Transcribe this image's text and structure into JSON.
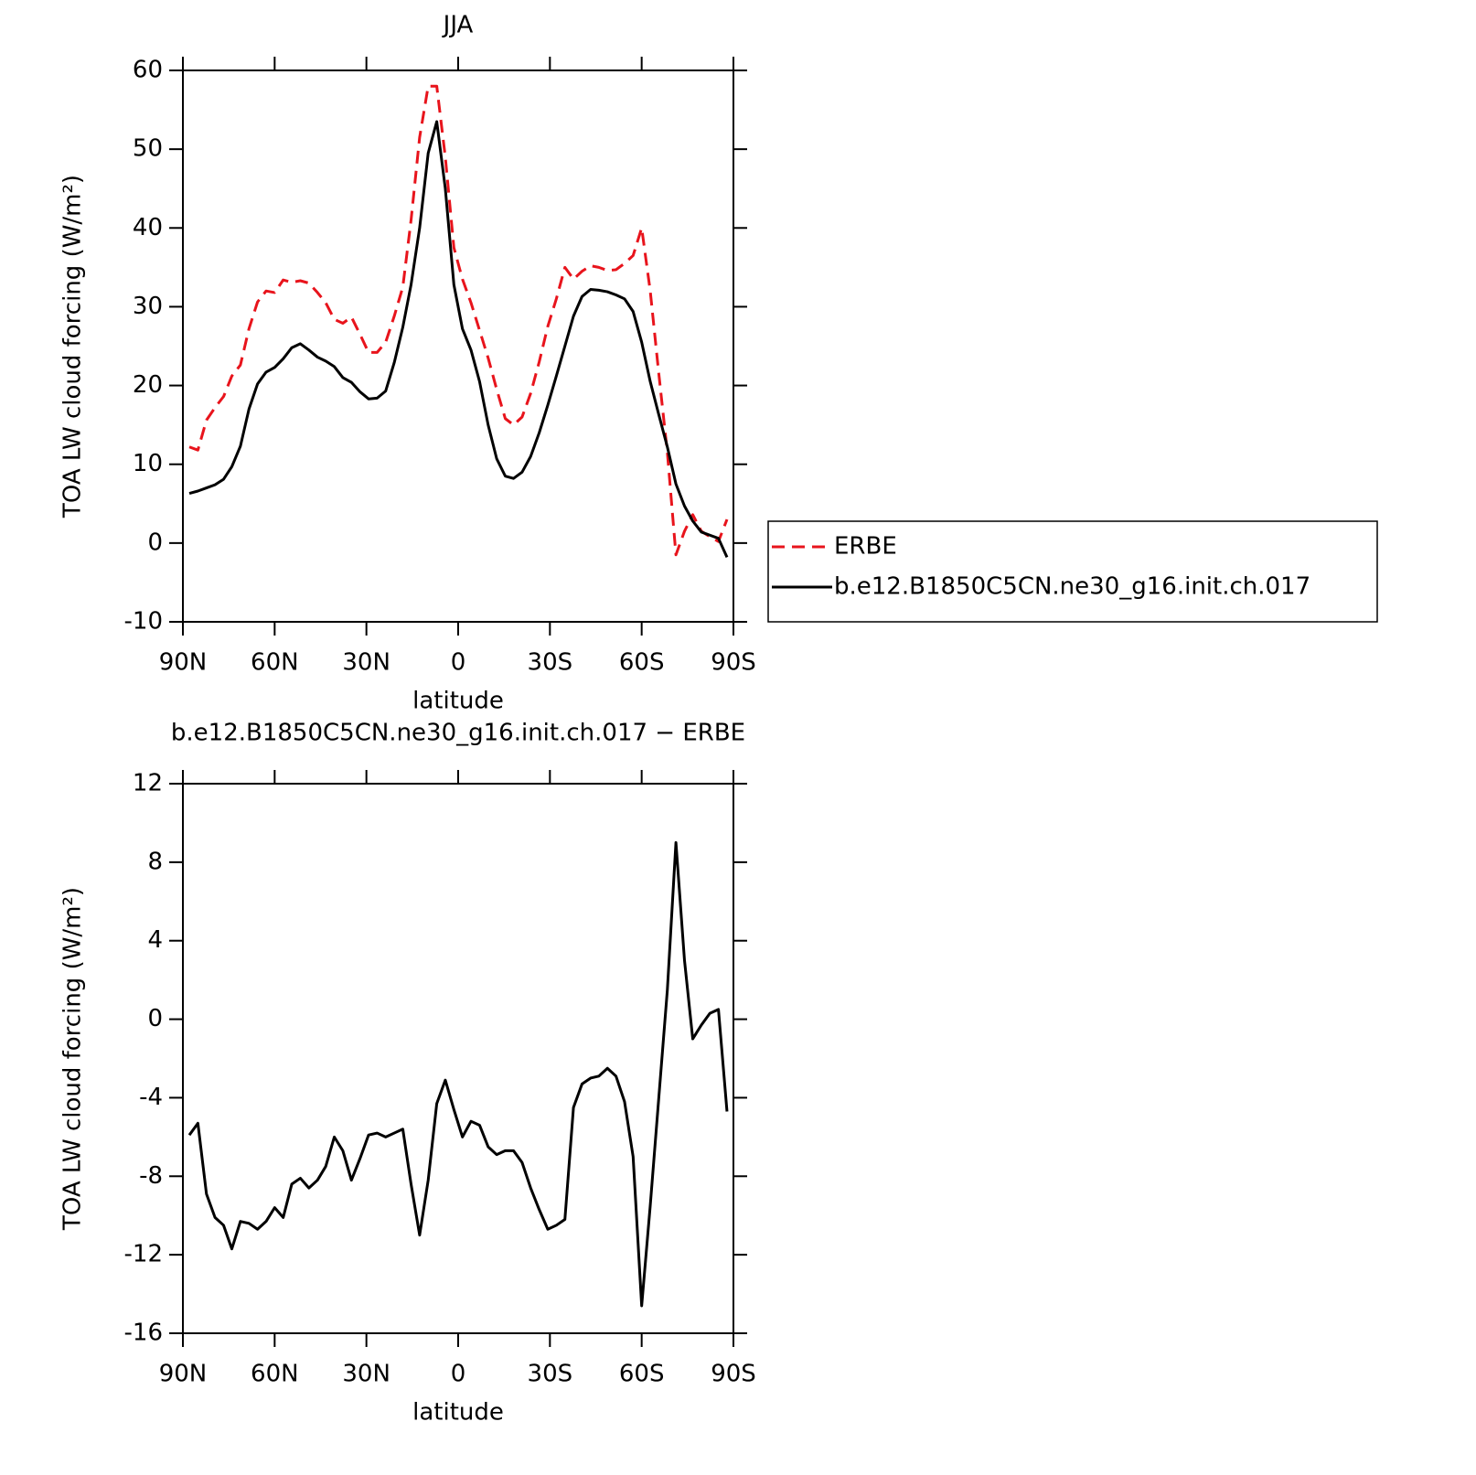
{
  "chart_data": [
    {
      "type": "line",
      "title": "JJA",
      "x_label": "latitude",
      "y_label": "TOA LW cloud forcing (W/m²)",
      "x": [
        87.9,
        85.1,
        82.3,
        79.5,
        76.7,
        74.0,
        71.2,
        68.4,
        65.6,
        62.8,
        60.0,
        57.2,
        54.4,
        51.6,
        48.8,
        46.0,
        43.3,
        40.5,
        37.7,
        34.9,
        32.1,
        29.3,
        26.5,
        23.7,
        20.9,
        18.1,
        15.4,
        12.6,
        9.8,
        7.0,
        4.2,
        1.4,
        -1.4,
        -4.2,
        -7.0,
        -9.8,
        -12.6,
        -15.4,
        -18.1,
        -20.9,
        -23.7,
        -26.5,
        -29.3,
        -32.1,
        -34.9,
        -37.7,
        -40.5,
        -43.3,
        -46.0,
        -48.8,
        -51.6,
        -54.4,
        -57.2,
        -60.0,
        -62.8,
        -65.6,
        -68.4,
        -71.2,
        -74.0,
        -76.7,
        -79.5,
        -82.3,
        -85.1,
        -87.9
      ],
      "xlim": [
        90,
        -90
      ],
      "xticks": [
        {
          "value": 90,
          "label": "90N"
        },
        {
          "value": 60,
          "label": "60N"
        },
        {
          "value": 30,
          "label": "30N"
        },
        0,
        {
          "value": -30,
          "label": "30S"
        },
        {
          "value": -60,
          "label": "60S"
        },
        {
          "value": -90,
          "label": "90S"
        }
      ],
      "ylim": [
        -10,
        60
      ],
      "yticks": [
        -10,
        0,
        10,
        20,
        30,
        40,
        50,
        60
      ],
      "legend": "right",
      "series": [
        {
          "name": "ERBE",
          "color": "#e8141c",
          "dashed": true,
          "values": [
            12.2,
            11.8,
            15.6,
            17.2,
            18.6,
            21.2,
            22.6,
            27.2,
            30.6,
            32.0,
            31.8,
            33.4,
            33.1,
            33.3,
            33.0,
            31.8,
            30.5,
            28.4,
            27.9,
            28.7,
            26.5,
            24.2,
            24.2,
            25.5,
            28.8,
            32.5,
            41.0,
            51.5,
            58.0,
            58.0,
            49.0,
            37.5,
            33.5,
            30.5,
            27.0,
            23.5,
            19.5,
            15.8,
            15.0,
            16.0,
            19.0,
            23.0,
            27.5,
            31.0,
            35.0,
            33.5,
            34.5,
            35.2,
            35.0,
            34.6,
            34.7,
            35.5,
            36.5,
            40.0,
            32.0,
            21.5,
            11.5,
            -1.5,
            1.5,
            3.6,
            1.5,
            0.8,
            0.2,
            3.0
          ]
        },
        {
          "name": "b.e12.B1850C5CN.ne30_g16.init.ch.017",
          "color": "#000000",
          "dashed": false,
          "values": [
            6.3,
            6.6,
            7.0,
            7.4,
            8.1,
            9.7,
            12.3,
            17.0,
            20.2,
            21.7,
            22.3,
            23.4,
            24.8,
            25.3,
            24.5,
            23.6,
            23.1,
            22.4,
            21.0,
            20.4,
            19.2,
            18.3,
            18.4,
            19.3,
            22.9,
            27.4,
            32.8,
            40.0,
            49.5,
            53.5,
            45.0,
            32.8,
            27.2,
            24.5,
            20.5,
            15.0,
            10.7,
            8.5,
            8.2,
            9.0,
            11.0,
            14.0,
            17.5,
            21.2,
            25.0,
            28.8,
            31.3,
            32.2,
            32.1,
            31.9,
            31.5,
            31.0,
            29.4,
            25.5,
            20.5,
            16.3,
            12.2,
            7.5,
            4.7,
            2.8,
            1.4,
            1.0,
            0.6,
            -1.8
          ]
        }
      ]
    },
    {
      "type": "line",
      "title": "b.e12.B1850C5CN.ne30_g16.init.ch.017 − ERBE",
      "x_label": "latitude",
      "y_label": "TOA LW cloud forcing (W/m²)",
      "x": [
        87.9,
        85.1,
        82.3,
        79.5,
        76.7,
        74.0,
        71.2,
        68.4,
        65.6,
        62.8,
        60.0,
        57.2,
        54.4,
        51.6,
        48.8,
        46.0,
        43.3,
        40.5,
        37.7,
        34.9,
        32.1,
        29.3,
        26.5,
        23.7,
        20.9,
        18.1,
        15.4,
        12.6,
        9.8,
        7.0,
        4.2,
        1.4,
        -1.4,
        -4.2,
        -7.0,
        -9.8,
        -12.6,
        -15.4,
        -18.1,
        -20.9,
        -23.7,
        -26.5,
        -29.3,
        -32.1,
        -34.9,
        -37.7,
        -40.5,
        -43.3,
        -46.0,
        -48.8,
        -51.6,
        -54.4,
        -57.2,
        -60.0,
        -62.8,
        -65.6,
        -68.4,
        -71.2,
        -74.0,
        -76.7,
        -79.5,
        -82.3,
        -85.1,
        -87.9
      ],
      "xlim": [
        90,
        -90
      ],
      "xticks": [
        {
          "value": 90,
          "label": "90N"
        },
        {
          "value": 60,
          "label": "60N"
        },
        {
          "value": 30,
          "label": "30N"
        },
        0,
        {
          "value": -30,
          "label": "30S"
        },
        {
          "value": -60,
          "label": "60S"
        },
        {
          "value": -90,
          "label": "90S"
        }
      ],
      "ylim": [
        -16,
        12
      ],
      "yticks": [
        -16,
        -12,
        -8,
        -4,
        0,
        4,
        8,
        12
      ],
      "series": [
        {
          "color": "#000000",
          "dashed": false,
          "values": [
            -5.9,
            -5.3,
            -8.9,
            -10.1,
            -10.5,
            -11.7,
            -10.3,
            -10.4,
            -10.7,
            -10.3,
            -9.6,
            -10.1,
            -8.4,
            -8.1,
            -8.6,
            -8.2,
            -7.5,
            -6.0,
            -6.7,
            -8.2,
            -7.1,
            -5.9,
            -5.8,
            -6.0,
            -5.8,
            -5.6,
            -8.4,
            -11.0,
            -8.2,
            -4.3,
            -3.1,
            -4.6,
            -6.0,
            -5.2,
            -5.4,
            -6.5,
            -6.9,
            -6.7,
            -6.7,
            -7.3,
            -8.6,
            -9.7,
            -10.7,
            -10.5,
            -10.2,
            -4.5,
            -3.3,
            -3.0,
            -2.9,
            -2.5,
            -2.9,
            -4.2,
            -7.0,
            -14.6,
            -9.5,
            -4.0,
            1.5,
            9.0,
            3.0,
            -1.0,
            -0.3,
            0.3,
            0.5,
            -4.7
          ]
        }
      ]
    }
  ]
}
